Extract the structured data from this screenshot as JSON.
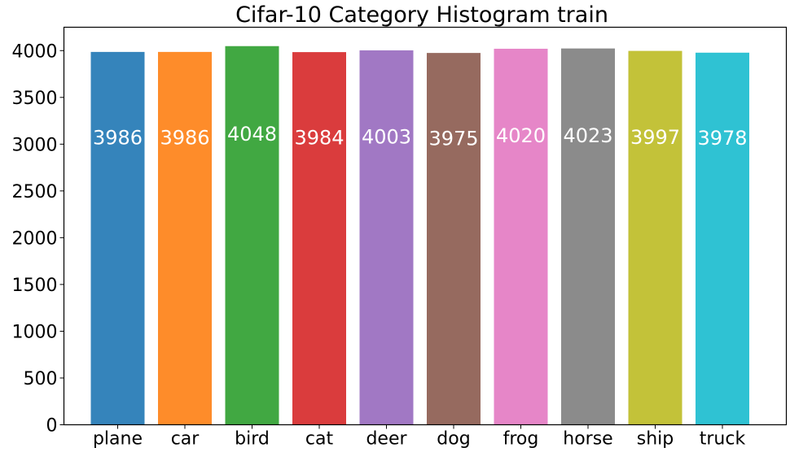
{
  "chart_data": {
    "type": "bar",
    "title": "Cifar-10 Category Histogram train",
    "xlabel": "",
    "ylabel": "",
    "categories": [
      "plane",
      "car",
      "bird",
      "cat",
      "deer",
      "dog",
      "frog",
      "horse",
      "ship",
      "truck"
    ],
    "values": [
      3986,
      3986,
      4048,
      3984,
      4003,
      3975,
      4020,
      4023,
      3997,
      3978
    ],
    "data_labels": [
      "3986",
      "3986",
      "4048",
      "3984",
      "4003",
      "3975",
      "4020",
      "4023",
      "3997",
      "3978"
    ],
    "colors": [
      "#3584bb",
      "#fe8c2a",
      "#41a842",
      "#da3c3d",
      "#a178c4",
      "#966a5f",
      "#e686c8",
      "#8b8b8b",
      "#c3c239",
      "#2fc2d3"
    ],
    "ylim": [
      0,
      4250
    ],
    "yticks": [
      0,
      500,
      1000,
      1500,
      2000,
      2500,
      3000,
      3500,
      4000
    ],
    "ytick_labels": [
      "0",
      "500",
      "1000",
      "1500",
      "2000",
      "2500",
      "3000",
      "3500",
      "4000"
    ],
    "label_value": 3000,
    "grid": false,
    "legend": "none"
  }
}
